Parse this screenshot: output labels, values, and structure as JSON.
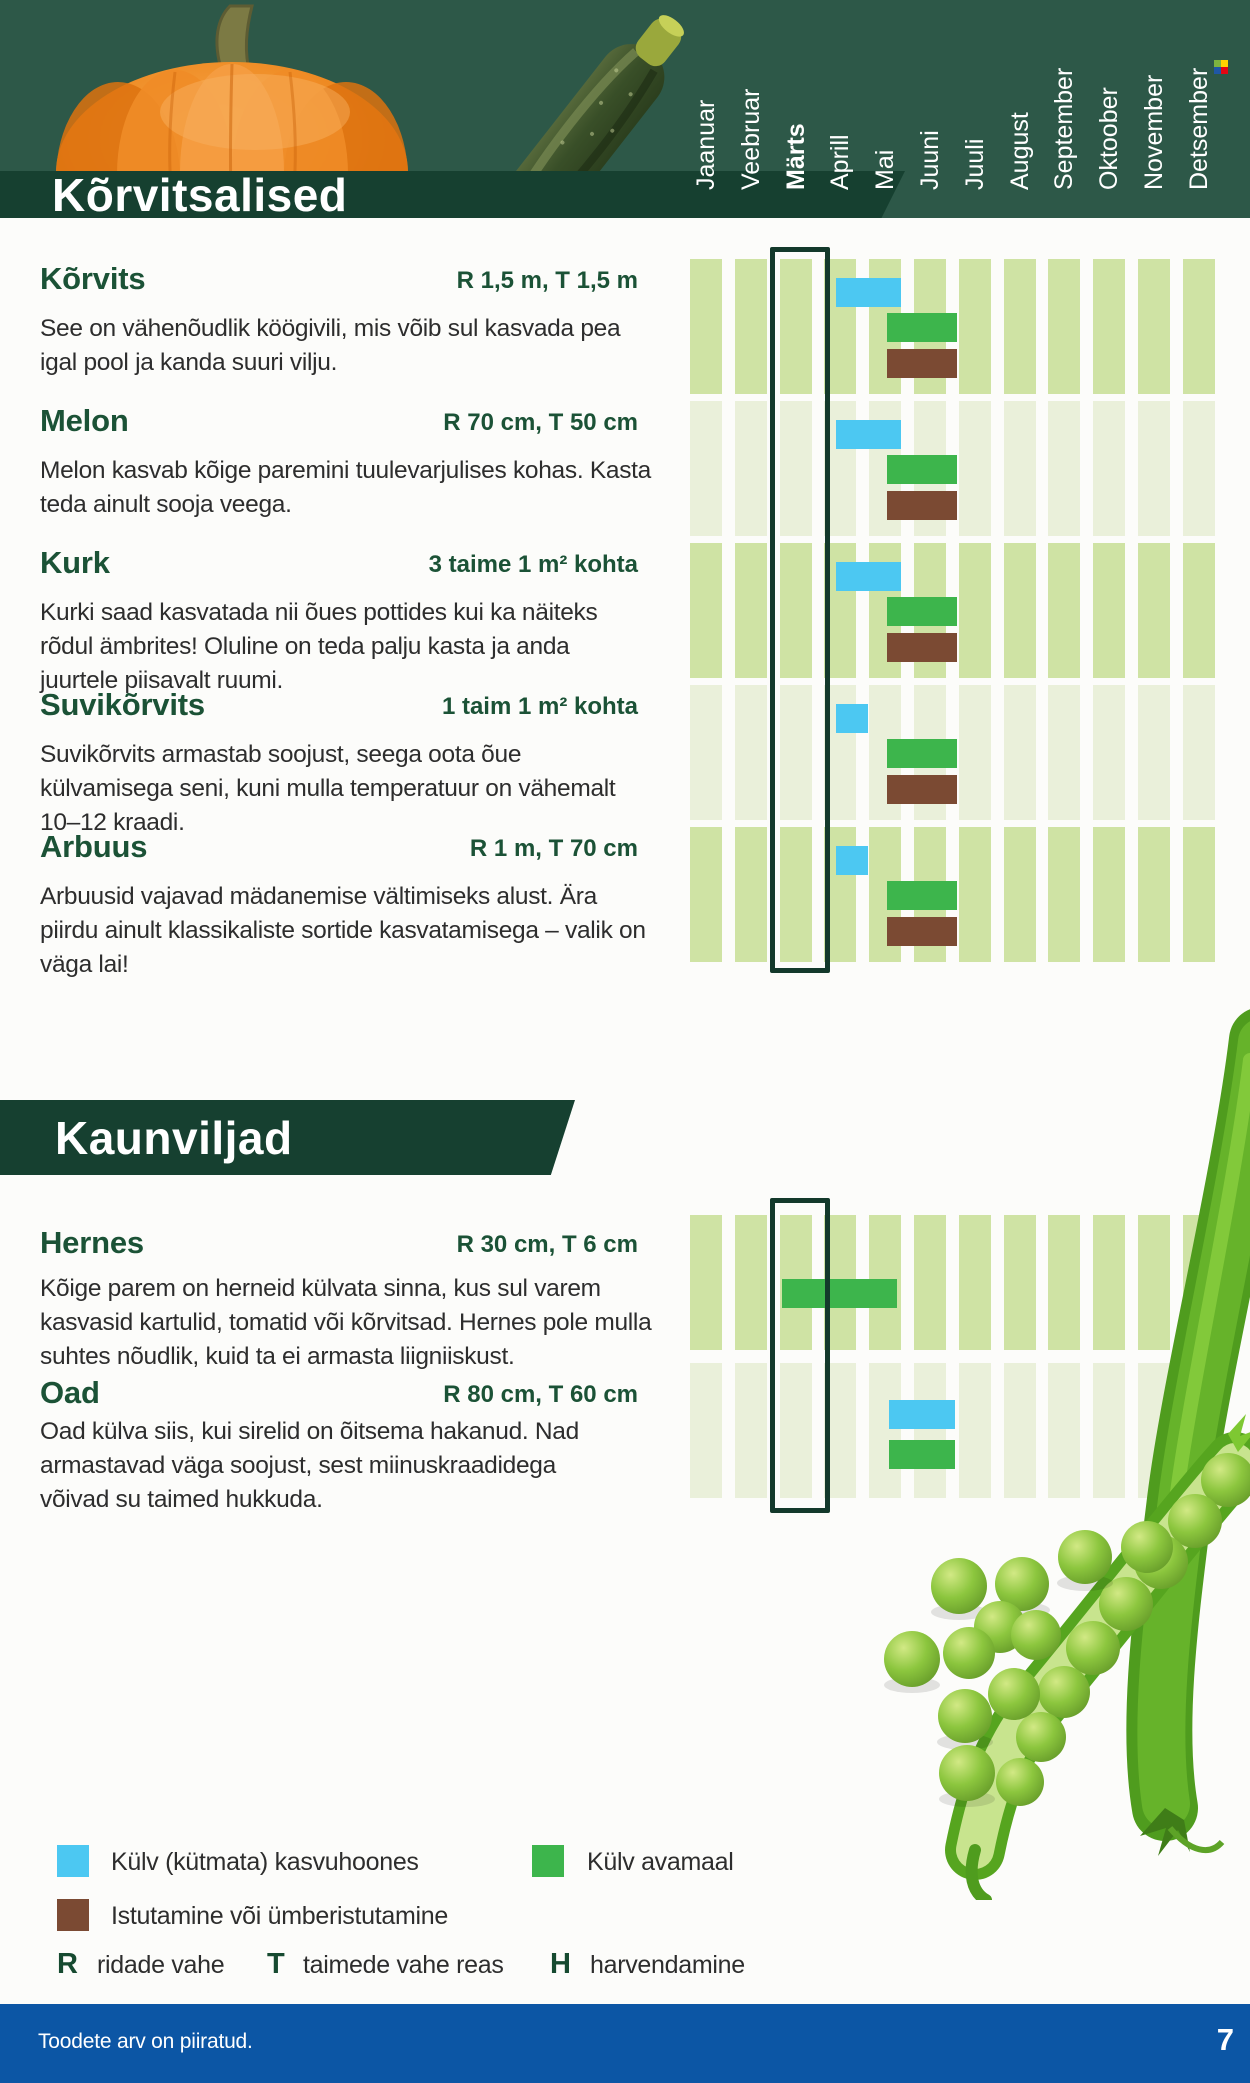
{
  "header": {
    "title": "Kõrvitsalised",
    "months": [
      "Jaanuar",
      "Veebruar",
      "Märts",
      "Aprill",
      "Mai",
      "Juuni",
      "Juuli",
      "August",
      "September",
      "Oktoober",
      "November",
      "Detsember"
    ],
    "highlighted_month": "Märts"
  },
  "colors": {
    "header_bg": "#2d5848",
    "banner_bg": "#164030",
    "heading_green": "#1b5236",
    "column_dark": "#cfe3a4",
    "column_pale": "#eaf0da",
    "greenhouse_blue": "#4cc8f2",
    "outdoor_green": "#3db54c",
    "transplant_brown": "#7b4a33",
    "box_outline": "#13392b",
    "footer_blue": "#0c56a5"
  },
  "sections": [
    {
      "name": "Kõrvits",
      "spec": "R 1,5 m, T 1,5 m",
      "description": "See on vähenõudlik köögivili, mis võib sul kasvada pea igal pool ja kanda suuri vilju.",
      "bars": [
        {
          "type": "greenhouse",
          "from": 3.25,
          "to": 5.0
        },
        {
          "type": "outdoor",
          "from": 4.4,
          "to": 6.25
        },
        {
          "type": "transplant",
          "from": 4.4,
          "to": 6.25
        }
      ]
    },
    {
      "name": "Melon",
      "spec": "R 70 cm, T 50 cm",
      "description": "Melon kasvab kõige paremini tuulevarjulises kohas. Kasta teda ainult sooja veega.",
      "bars": [
        {
          "type": "greenhouse",
          "from": 3.25,
          "to": 5.0
        },
        {
          "type": "outdoor",
          "from": 4.4,
          "to": 6.25
        },
        {
          "type": "transplant",
          "from": 4.4,
          "to": 6.25
        }
      ]
    },
    {
      "name": "Kurk",
      "spec": "3 taime 1 m² kohta",
      "description": "Kurki saad kasvatada nii õues pottides kui ka näiteks rõdul ämbrites! Oluline on teda palju kasta ja anda juurtele piisavalt ruumi.",
      "bars": [
        {
          "type": "greenhouse",
          "from": 3.25,
          "to": 5.0
        },
        {
          "type": "outdoor",
          "from": 4.4,
          "to": 6.25
        },
        {
          "type": "transplant",
          "from": 4.4,
          "to": 6.25
        }
      ]
    },
    {
      "name": "Suvikõrvits",
      "spec": "1 taim 1 m² kohta",
      "description": "Suvikõrvits armastab soojust, seega oota õue külvamisega seni, kuni mulla temperatuur on vähemalt 10–12 kraadi.",
      "bars": [
        {
          "type": "greenhouse",
          "from": 3.25,
          "to": 4.25
        },
        {
          "type": "outdoor",
          "from": 4.4,
          "to": 6.25
        },
        {
          "type": "transplant",
          "from": 4.4,
          "to": 6.25
        }
      ]
    },
    {
      "name": "Arbuus",
      "spec": "R 1 m, T 70 cm",
      "description": "Arbuusid vajavad mädanemise vältimiseks alust. Ära piirdu ainult klassikaliste sortide kasvatamisega – valik on väga lai!",
      "bars": [
        {
          "type": "greenhouse",
          "from": 3.25,
          "to": 4.25
        },
        {
          "type": "outdoor",
          "from": 4.4,
          "to": 6.25
        },
        {
          "type": "transplant",
          "from": 4.4,
          "to": 6.25
        }
      ]
    },
    {
      "name": "Hernes",
      "spec": "R 30 cm, T 6 cm",
      "description": "Kõige parem on herneid külvata sinna, kus sul varem kasvasid kartulid, tomatid või kõrvitsad. Hernes pole mulla suhtes nõudlik, kuid ta ei armasta liigniiskust.",
      "bars": [
        {
          "type": "outdoor",
          "from": 2.05,
          "to": 4.9
        }
      ]
    },
    {
      "name": "Oad",
      "spec": "R 80 cm, T 60 cm",
      "description": "Oad külva siis, kui sirelid on õitsema hakanud. Nad armastavad väga soojust, sest miinuskraadidega võivad su taimed hukkuda.",
      "bars": [
        {
          "type": "greenhouse",
          "from": 4.45,
          "to": 6.2
        },
        {
          "type": "outdoor",
          "from": 4.45,
          "to": 6.2
        }
      ]
    }
  ],
  "legumes": {
    "title": "Kaunviljad"
  },
  "legend": {
    "greenhouse_label": "Külv (kütmata) kasvuhoones",
    "outdoor_label": "Külv avamaal",
    "transplant_label": "Istutamine või ümberistutamine",
    "abbr": [
      {
        "letter": "R",
        "label": "ridade vahe"
      },
      {
        "letter": "T",
        "label": "taimede vahe reas"
      },
      {
        "letter": "H",
        "label": "harvendamine"
      }
    ]
  },
  "footer": {
    "note": "Toodete arv on piiratud.",
    "page_number": "7"
  }
}
